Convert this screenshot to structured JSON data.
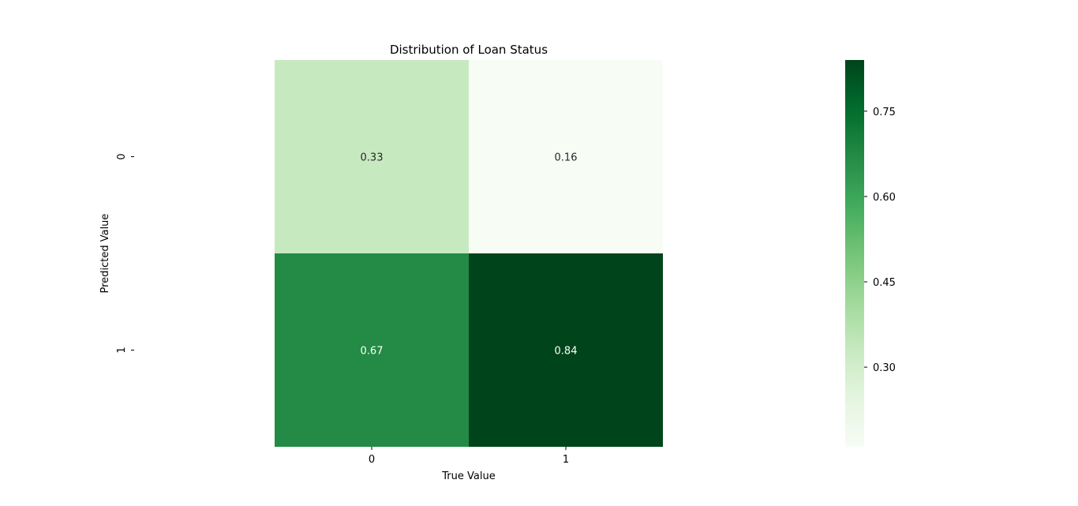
{
  "chart_data": {
    "type": "heatmap",
    "title": "Distribution of Loan Status",
    "xlabel": "True Value",
    "ylabel": "Predicted Value",
    "x_categories": [
      "0",
      "1"
    ],
    "y_categories": [
      "0",
      "1"
    ],
    "values": [
      [
        0.33,
        0.16
      ],
      [
        0.67,
        0.84
      ]
    ],
    "value_labels": [
      [
        "0.33",
        "0.16"
      ],
      [
        "0.67",
        "0.84"
      ]
    ],
    "colormap": "Greens",
    "colorbar": {
      "vmin": 0.16,
      "vmax": 0.84,
      "ticks": [
        0.3,
        0.45,
        0.6,
        0.75
      ],
      "tick_labels": [
        "0.30",
        "0.45",
        "0.60",
        "0.75"
      ]
    },
    "grid": false
  }
}
